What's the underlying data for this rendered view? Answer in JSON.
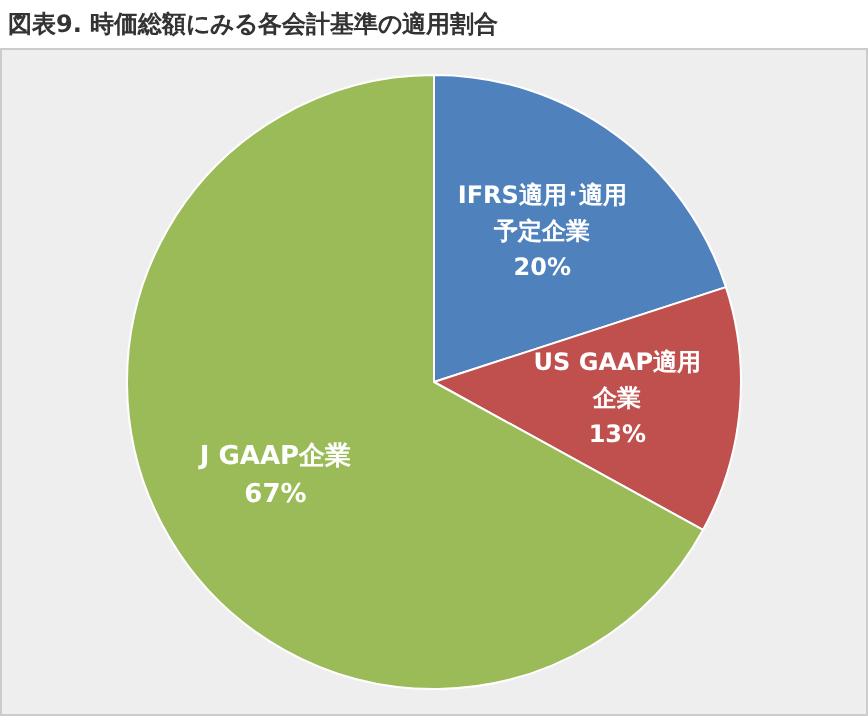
{
  "chart_data": {
    "type": "pie",
    "title": "図表9. 時価総額にみる各会計基準の適用割合",
    "categories": [
      "IFRS適用･適用予定企業",
      "US GAAP適用企業",
      "J GAAP企業"
    ],
    "values": [
      20,
      13,
      67
    ],
    "colors": [
      "#4f81bd",
      "#c0504d",
      "#9bbb59"
    ],
    "value_labels": [
      "20%",
      "13%",
      "67%"
    ],
    "legend": false
  }
}
